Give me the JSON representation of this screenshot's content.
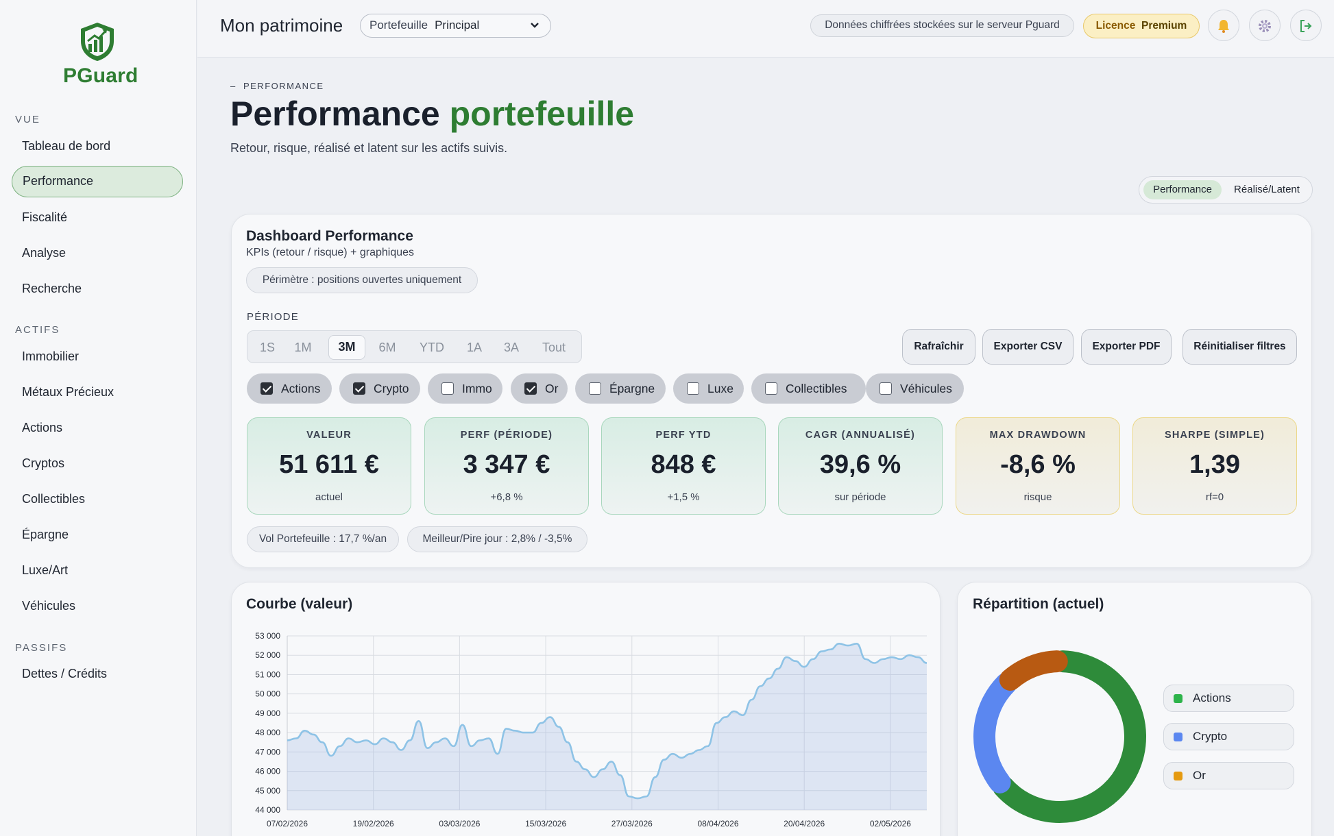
{
  "app": {
    "name": "PGuard"
  },
  "sidebar": {
    "sections": [
      {
        "title": "VUE",
        "items": [
          "Tableau de bord",
          "Performance",
          "Fiscalité",
          "Analyse",
          "Recherche"
        ]
      },
      {
        "title": "ACTIFS",
        "items": [
          "Immobilier",
          "Métaux Précieux",
          "Actions",
          "Cryptos",
          "Collectibles",
          "Épargne",
          "Luxe/Art",
          "Véhicules"
        ]
      },
      {
        "title": "PASSIFS",
        "items": [
          "Dettes / Crédits"
        ]
      }
    ],
    "active_item": "Performance"
  },
  "topbar": {
    "title": "Mon patrimoine",
    "portfolio_label": "Portefeuille",
    "portfolio_value": "Principal",
    "server_notice": "Données chiffrées stockées sur le serveur Pguard",
    "licence_label": "Licence",
    "licence_value": "Premium",
    "icons": [
      "bell-icon",
      "gear-icon",
      "logout-icon"
    ]
  },
  "header": {
    "eyebrow": "PERFORMANCE",
    "title_main": "Performance",
    "title_accent": "portefeuille",
    "subtitle": "Retour, risque, réalisé et latent sur les actifs suivis.",
    "view_tabs": [
      "Performance",
      "Réalisé/Latent"
    ],
    "active_tab": "Performance"
  },
  "dashboard": {
    "title": "Dashboard Performance",
    "subtitle": "KPIs (retour / risque) + graphiques",
    "scope": "Périmètre : positions ouvertes uniquement",
    "period_label": "PÉRIODE",
    "periods": [
      "1S",
      "1M",
      "3M",
      "6M",
      "YTD",
      "1A",
      "3A",
      "Tout"
    ],
    "active_period": "3M",
    "actions": [
      "Rafraîchir",
      "Exporter CSV",
      "Exporter PDF",
      "Réinitialiser filtres"
    ],
    "filters": [
      {
        "label": "Actions",
        "checked": true
      },
      {
        "label": "Crypto",
        "checked": true
      },
      {
        "label": "Immo",
        "checked": false
      },
      {
        "label": "Or",
        "checked": true
      },
      {
        "label": "Épargne",
        "checked": false
      },
      {
        "label": "Luxe",
        "checked": false
      },
      {
        "label": "Collectibles",
        "checked": false
      },
      {
        "label": "Véhicules",
        "checked": false
      }
    ],
    "kpis": [
      {
        "label": "VALEUR",
        "value": "51 611 €",
        "note": "actuel",
        "tone": "green"
      },
      {
        "label": "PERF (PÉRIODE)",
        "value": "3 347 €",
        "note": "+6,8 %",
        "tone": "green"
      },
      {
        "label": "PERF YTD",
        "value": "848 €",
        "note": "+1,5 %",
        "tone": "green"
      },
      {
        "label": "CAGR (ANNUALISÉ)",
        "value": "39,6 %",
        "note": "sur période",
        "tone": "green"
      },
      {
        "label": "MAX DRAWDOWN",
        "value": "-8,6 %",
        "note": "risque",
        "tone": "yellow"
      },
      {
        "label": "SHARPE (SIMPLE)",
        "value": "1,39",
        "note": "rf=0",
        "tone": "yellow"
      }
    ],
    "stats": [
      "Vol Portefeuille : 17,7 %/an",
      "Meilleur/Pire jour : 2,8% / -3,5%"
    ]
  },
  "curve_card": {
    "title": "Courbe (valeur)"
  },
  "allocation_card": {
    "title": "Répartition (actuel)"
  },
  "chart_data": [
    {
      "type": "area",
      "title": "Courbe (valeur)",
      "xlabel": "",
      "ylabel": "",
      "ylim": [
        44000,
        53000
      ],
      "y_ticks": [
        "53 000",
        "52 000",
        "51 000",
        "50 000",
        "49 000",
        "48 000",
        "47 000",
        "46 000",
        "45 000",
        "44 000"
      ],
      "x_ticks": [
        "07/02/2026",
        "19/02/2026",
        "03/03/2026",
        "15/03/2026",
        "27/03/2026",
        "08/04/2026",
        "20/04/2026",
        "02/05/2026"
      ],
      "x_start": "07/02/2026",
      "x_end": "08/05/2026",
      "grid": true,
      "color": "#8ec3e6",
      "series": [
        {
          "values": [
            47600,
            47700,
            48100,
            47900,
            47500,
            46800,
            47300,
            47700,
            47500,
            47600,
            47400,
            47700,
            47500,
            47100,
            47600,
            48600,
            47200,
            47500,
            47700,
            47300,
            48400,
            47300,
            47600,
            47700,
            46900,
            48200,
            48100,
            48000,
            48000,
            48500,
            48800,
            48300,
            47500,
            46500,
            46100,
            45700,
            46100,
            46500,
            45800,
            44700,
            44600,
            44700,
            45700,
            46600,
            46900,
            46700,
            46900,
            47100,
            47300,
            48500,
            48800,
            49100,
            48900,
            49700,
            50400,
            50800,
            51300,
            51900,
            51700,
            51400,
            51800,
            52200,
            52300,
            52600,
            52500,
            52600,
            51800,
            51600,
            51800,
            51900,
            51800,
            52000,
            51900,
            51600
          ]
        }
      ]
    },
    {
      "type": "pie",
      "title": "Répartition (actuel)",
      "categories": [
        "Actions",
        "Crypto",
        "Or"
      ],
      "values": [
        64,
        24,
        12
      ],
      "colors": [
        "#2e8b3a",
        "#5b87f0",
        "#b85a12"
      ],
      "legend_position": "right"
    }
  ]
}
